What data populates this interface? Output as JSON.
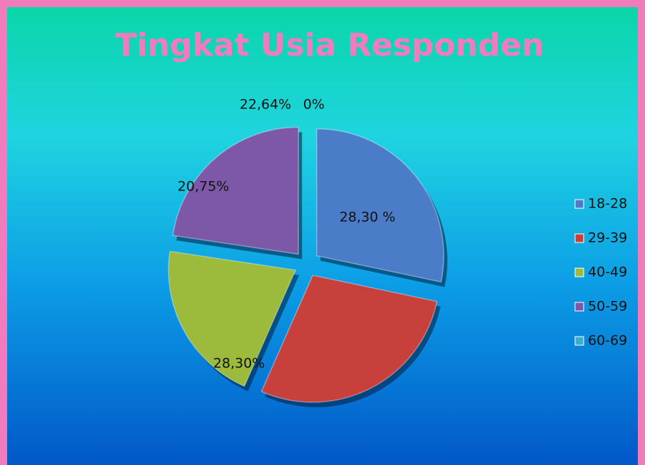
{
  "chart_data": {
    "type": "pie",
    "title": "Tingkat Usia Responden",
    "categories": [
      "18-28",
      "29-39",
      "40-49",
      "50-59",
      "60-69"
    ],
    "values": [
      28.3,
      28.3,
      20.75,
      22.64,
      0
    ],
    "value_labels": [
      "28,30 %",
      "28,30%",
      "20,75%",
      "22,64%",
      "0%"
    ],
    "colors": [
      "#4a7cc8",
      "#c8403c",
      "#9cbb3c",
      "#7e58a8",
      "#3aaed0"
    ],
    "legend": "right"
  }
}
